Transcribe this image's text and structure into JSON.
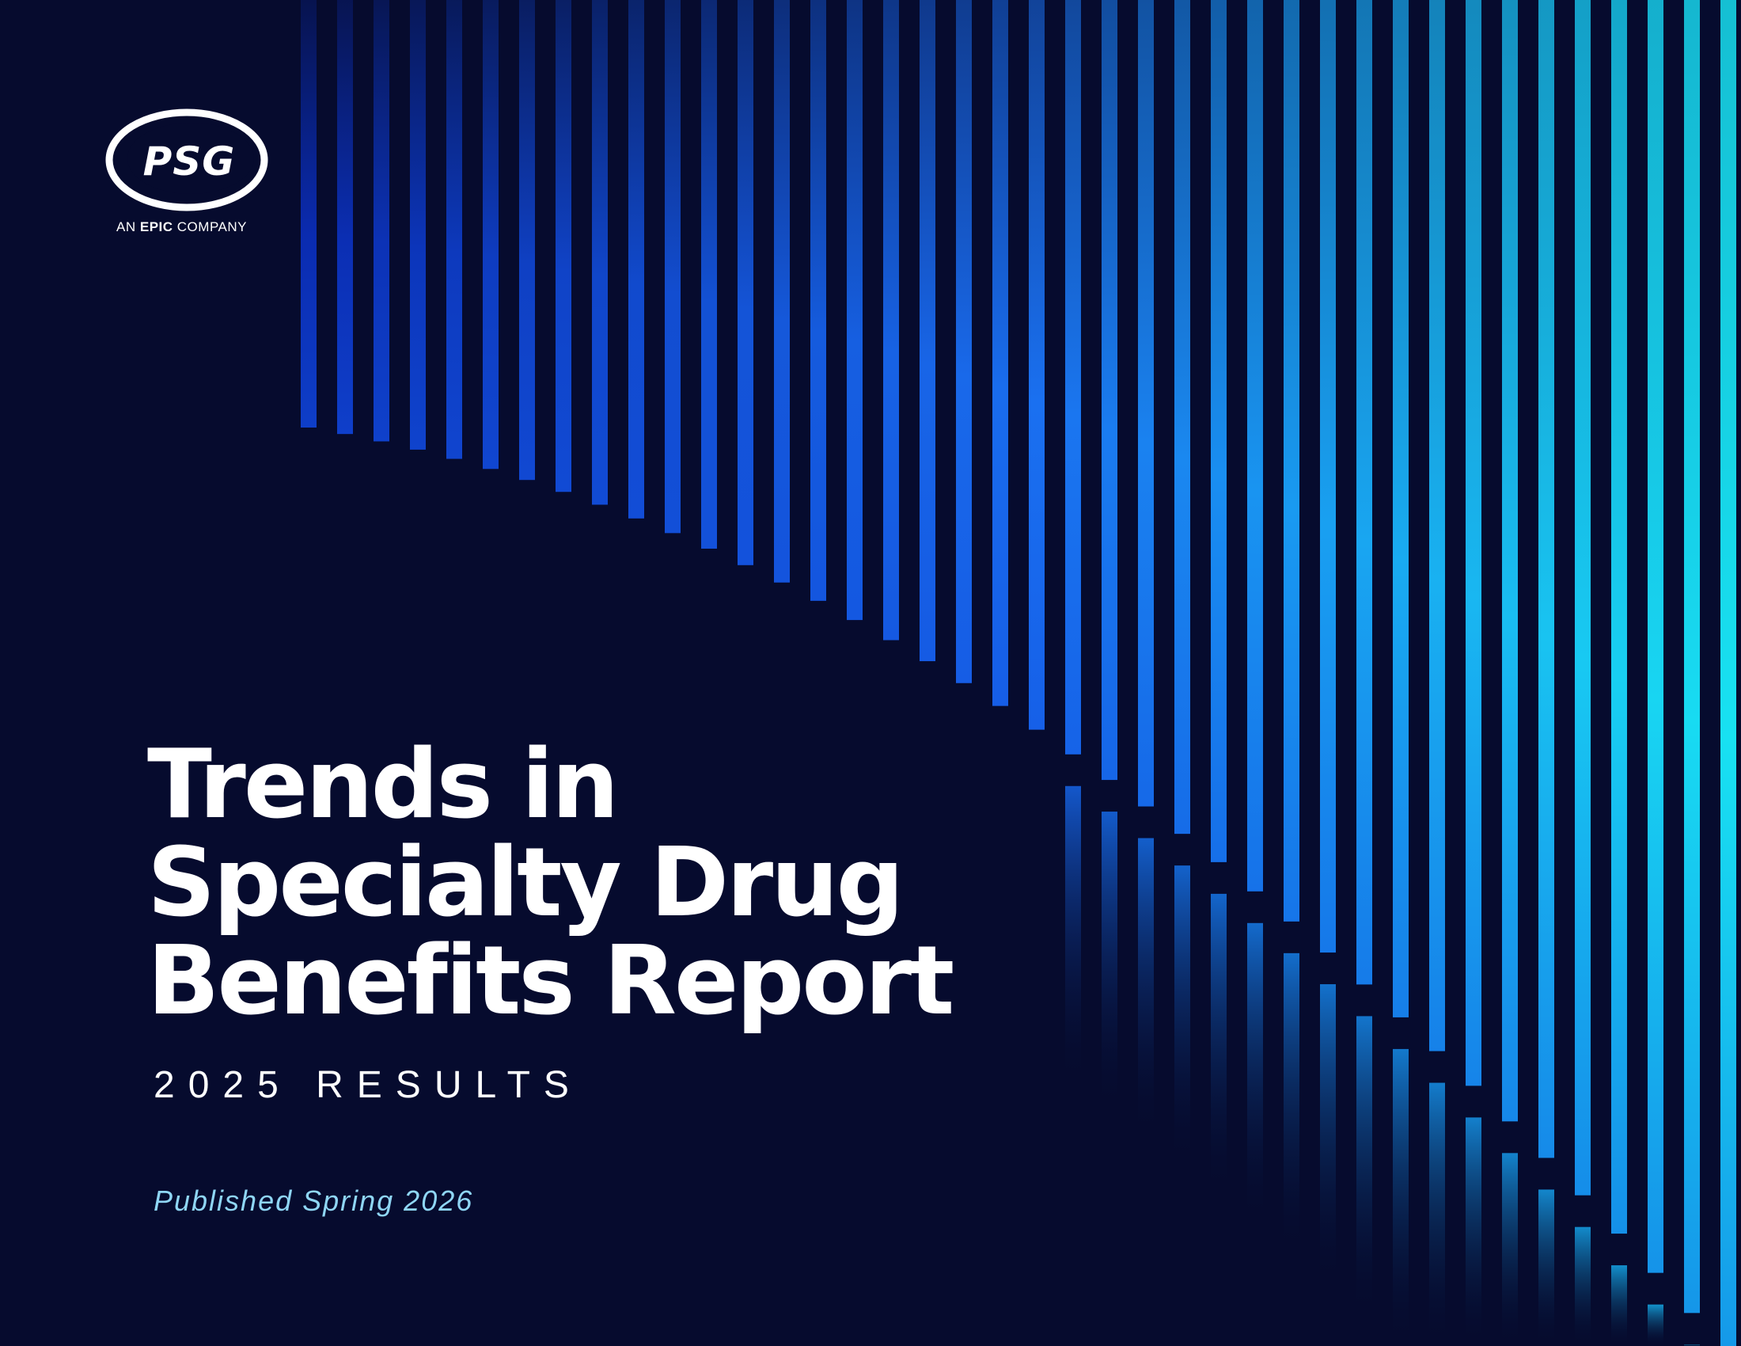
{
  "cover": {
    "logo": {
      "mark": "PSG",
      "tagline_prefix": "AN",
      "tagline_brand": "EPIC",
      "tagline_suffix": "COMPANY"
    },
    "title_lines": [
      "Trends in",
      "Specialty Drug",
      "Benefits Report"
    ],
    "subtitle": "2025 RESULTS",
    "published": "Published Spring 2026"
  },
  "colors": {
    "background": "#060b2e",
    "stripe_deep": "#0d3fd4",
    "stripe_mid": "#1a7bf0",
    "stripe_bright": "#16e0f0",
    "published_text": "#8fd6f5",
    "text": "#ffffff"
  }
}
